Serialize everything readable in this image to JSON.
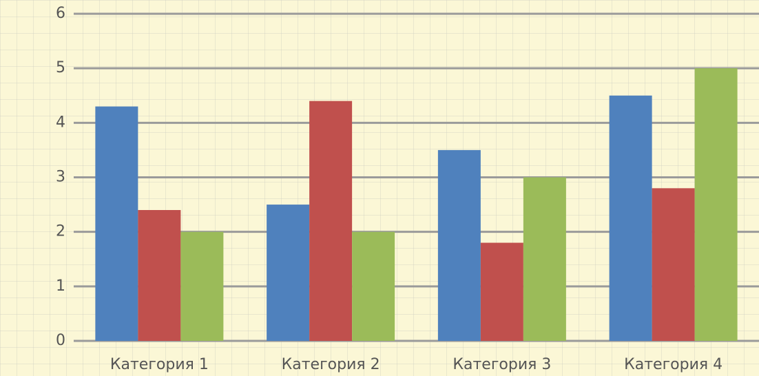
{
  "chart_data": {
    "type": "bar",
    "categories": [
      "Категория 1",
      "Категория 2",
      "Категория 3",
      "Категория 4"
    ],
    "series": [
      {
        "color": "#4f81bd",
        "values": [
          4.3,
          2.5,
          3.5,
          4.5
        ]
      },
      {
        "color": "#c0504d",
        "values": [
          2.4,
          4.4,
          1.8,
          2.8
        ]
      },
      {
        "color": "#9bbb59",
        "values": [
          2,
          2,
          3,
          5
        ]
      }
    ],
    "ylim": [
      0,
      6
    ],
    "yticks": [
      0,
      1,
      2,
      3,
      4,
      5,
      6
    ],
    "grid": true
  }
}
